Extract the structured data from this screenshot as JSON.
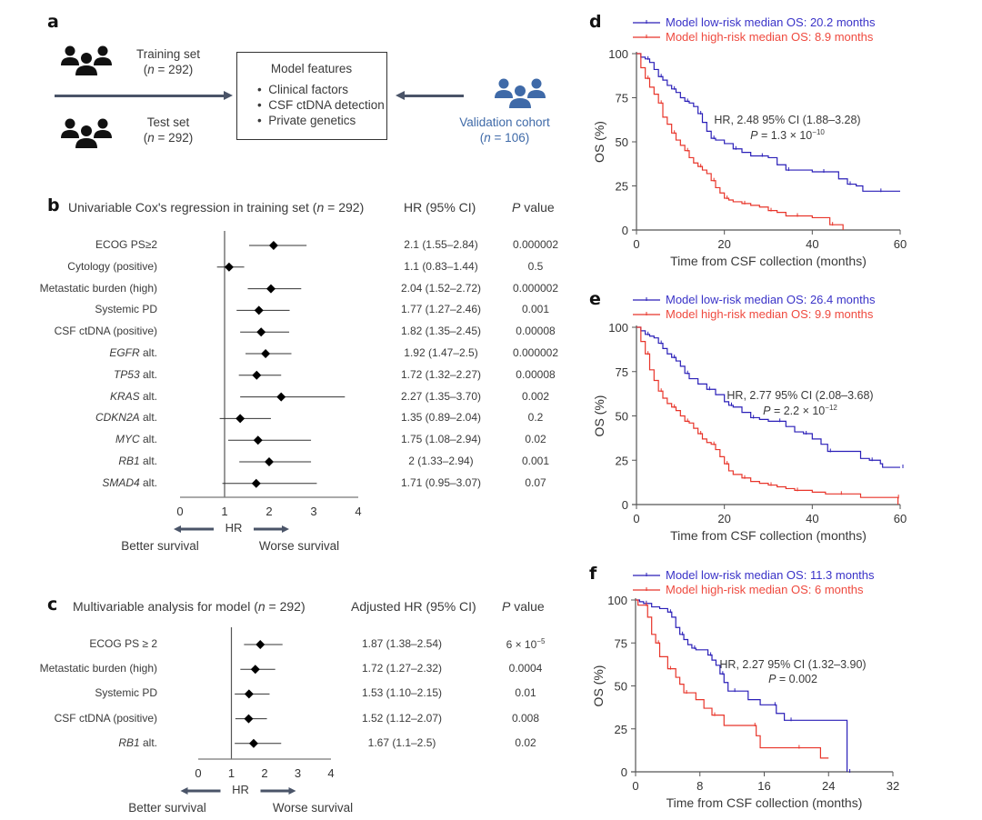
{
  "panel_a": {
    "letter": "a",
    "training": {
      "label": "Training set",
      "n": "(n = 292)"
    },
    "test": {
      "label": "Test set",
      "n": "(n = 292)"
    },
    "validation": {
      "label": "Validation cohort",
      "n": "(n = 106)"
    },
    "model_box": {
      "title": "Model features",
      "items": [
        "Clinical factors",
        "CSF ctDNA detection",
        "Private genetics"
      ]
    },
    "icon": "people-group-icon",
    "colors": {
      "validation": "#3f6aa8",
      "arrow": "#4a5468"
    }
  },
  "chart_data": [
    {
      "panel": "b",
      "type": "forest",
      "title": "Univariable Cox's regression in training set (n = 292)",
      "col_headers": [
        "HR (95% CI)",
        "P value"
      ],
      "xlabel": "HR",
      "xlim": [
        0,
        4
      ],
      "xticks": [
        0,
        1,
        2,
        3,
        4
      ],
      "reference_line": 1,
      "direction_labels": {
        "left": "Better survival",
        "right": "Worse survival"
      },
      "rows": [
        {
          "label": "ECOG PS≥2",
          "italic": "",
          "suffix": "",
          "hr": 2.1,
          "lo": 1.55,
          "hi": 2.84,
          "hr_text": "2.1 (1.55–2.84)",
          "p": "0.000002"
        },
        {
          "label": "Cytology (positive)",
          "italic": "",
          "suffix": "",
          "hr": 1.1,
          "lo": 0.83,
          "hi": 1.44,
          "hr_text": "1.1 (0.83–1.44)",
          "p": "0.5"
        },
        {
          "label": "Metastatic burden (high)",
          "italic": "",
          "suffix": "",
          "hr": 2.04,
          "lo": 1.52,
          "hi": 2.72,
          "hr_text": "2.04 (1.52–2.72)",
          "p": "0.000002"
        },
        {
          "label": "Systemic PD",
          "italic": "",
          "suffix": "",
          "hr": 1.77,
          "lo": 1.27,
          "hi": 2.46,
          "hr_text": "1.77 (1.27–2.46)",
          "p": "0.001"
        },
        {
          "label": "CSF ctDNA (positive)",
          "italic": "",
          "suffix": "",
          "hr": 1.82,
          "lo": 1.35,
          "hi": 2.45,
          "hr_text": "1.82 (1.35–2.45)",
          "p": "0.00008"
        },
        {
          "label": "",
          "italic": "EGFR",
          "suffix": " alt.",
          "hr": 1.92,
          "lo": 1.47,
          "hi": 2.5,
          "hr_text": "1.92 (1.47–2.5)",
          "p": "0.000002"
        },
        {
          "label": "",
          "italic": "TP53",
          "suffix": " alt.",
          "hr": 1.72,
          "lo": 1.32,
          "hi": 2.27,
          "hr_text": "1.72 (1.32–2.27)",
          "p": "0.00008"
        },
        {
          "label": "",
          "italic": "KRAS",
          "suffix": " alt.",
          "hr": 2.27,
          "lo": 1.35,
          "hi": 3.7,
          "hr_text": "2.27 (1.35–3.70)",
          "p": "0.002"
        },
        {
          "label": "",
          "italic": "CDKN2A",
          "suffix": " alt.",
          "hr": 1.35,
          "lo": 0.89,
          "hi": 2.04,
          "hr_text": "1.35 (0.89–2.04)",
          "p": "0.2"
        },
        {
          "label": "",
          "italic": "MYC",
          "suffix": " alt.",
          "hr": 1.75,
          "lo": 1.08,
          "hi": 2.94,
          "hr_text": "1.75 (1.08–2.94)",
          "p": "0.02"
        },
        {
          "label": "",
          "italic": "RB1",
          "suffix": " alt.",
          "hr": 2,
          "lo": 1.33,
          "hi": 2.94,
          "hr_text": "2 (1.33–2.94)",
          "p": "0.001"
        },
        {
          "label": "",
          "italic": "SMAD4",
          "suffix": " alt.",
          "hr": 1.71,
          "lo": 0.95,
          "hi": 3.07,
          "hr_text": "1.71 (0.95–3.07)",
          "p": "0.07"
        }
      ]
    },
    {
      "panel": "c",
      "type": "forest",
      "title": "Multivariable analysis for model (n = 292)",
      "col_headers": [
        "Adjusted HR (95% CI)",
        "P value"
      ],
      "xlabel": "HR",
      "xlim": [
        0,
        4
      ],
      "xticks": [
        0,
        1,
        2,
        3,
        4
      ],
      "reference_line": 1,
      "direction_labels": {
        "left": "Better survival",
        "right": "Worse survival"
      },
      "rows": [
        {
          "label": "ECOG PS ≥ 2",
          "italic": "",
          "suffix": "",
          "hr": 1.87,
          "lo": 1.38,
          "hi": 2.54,
          "hr_text": "1.87 (1.38–2.54)",
          "p": "6 × 10",
          "p_exp": "−5"
        },
        {
          "label": "Metastatic burden (high)",
          "italic": "",
          "suffix": "",
          "hr": 1.72,
          "lo": 1.27,
          "hi": 2.32,
          "hr_text": "1.72 (1.27–2.32)",
          "p": "0.0004",
          "p_exp": ""
        },
        {
          "label": "Systemic PD",
          "italic": "",
          "suffix": "",
          "hr": 1.53,
          "lo": 1.1,
          "hi": 2.15,
          "hr_text": "1.53 (1.10–2.15)",
          "p": "0.01",
          "p_exp": ""
        },
        {
          "label": "CSF ctDNA (positive)",
          "italic": "",
          "suffix": "",
          "hr": 1.52,
          "lo": 1.12,
          "hi": 2.07,
          "hr_text": "1.52 (1.12–2.07)",
          "p": "0.008",
          "p_exp": ""
        },
        {
          "label": "",
          "italic": "RB1",
          "suffix": " alt.",
          "hr": 1.67,
          "lo": 1.1,
          "hi": 2.5,
          "hr_text": "1.67 (1.1–2.5)",
          "p": "0.02",
          "p_exp": ""
        }
      ]
    },
    {
      "panel": "d",
      "type": "line",
      "subtype": "kaplan-meier",
      "xlabel": "Time from CSF collection (months)",
      "ylabel": "OS (%)",
      "xlim": [
        0,
        60
      ],
      "ylim": [
        0,
        100
      ],
      "xticks": [
        0,
        20,
        40,
        60
      ],
      "yticks": [
        0,
        25,
        50,
        75,
        100
      ],
      "annotation": {
        "line1": "HR, 2.48 95% CI (1.88–3.28)",
        "line2_prefix": "P",
        "line2": " = 1.3 × 10",
        "line2_exp": "−10"
      },
      "series": [
        {
          "name": "Model low-risk median OS: 20.2 months",
          "color": "#2a1fb8",
          "x": [
            0,
            1,
            2,
            3,
            4,
            5,
            6,
            7,
            8,
            9,
            10,
            11,
            12,
            13,
            14,
            15,
            16,
            17,
            18,
            20,
            22,
            24,
            26,
            28,
            30,
            32,
            34,
            36,
            40,
            42,
            44,
            46,
            48,
            50,
            51.5,
            55,
            60
          ],
          "y": [
            100,
            98,
            97,
            95,
            91,
            87,
            85,
            82,
            80,
            78,
            75,
            73,
            72,
            70,
            66,
            61,
            56,
            52,
            51,
            49,
            46,
            44,
            42,
            42,
            41,
            37,
            34,
            34,
            33,
            33,
            33,
            29,
            26,
            25,
            22,
            22,
            22
          ]
        },
        {
          "name": "Model high-risk median OS: 8.9 months",
          "color": "#e8352a",
          "x": [
            0,
            1,
            2,
            3,
            4,
            5,
            6,
            7,
            8,
            9,
            10,
            11,
            12,
            13,
            14,
            15,
            16,
            17,
            18,
            19,
            20,
            21,
            22,
            24,
            26,
            28,
            30,
            32,
            34,
            36,
            40,
            43,
            44,
            46,
            47
          ],
          "y": [
            100,
            92,
            86,
            81,
            77,
            72,
            64,
            60,
            55,
            51,
            48,
            45,
            41,
            38,
            36,
            34,
            32,
            28,
            24,
            21,
            18,
            17,
            16,
            15,
            14,
            13,
            11,
            10,
            8,
            8,
            7,
            7,
            3,
            3,
            0
          ]
        }
      ],
      "legend": "top-left"
    },
    {
      "panel": "e",
      "type": "line",
      "subtype": "kaplan-meier",
      "xlabel": "Time from CSF collection (months)",
      "ylabel": "OS (%)",
      "xlim": [
        0,
        60
      ],
      "ylim": [
        0,
        100
      ],
      "xticks": [
        0,
        20,
        40,
        60
      ],
      "yticks": [
        0,
        25,
        50,
        75,
        100
      ],
      "annotation": {
        "line1": "HR, 2.77 95% CI (2.08–3.68)",
        "line2_prefix": "P",
        "line2": " = 2.2 × 10",
        "line2_exp": "−12"
      },
      "series": [
        {
          "name": "Model low-risk median OS: 26.4 months",
          "color": "#2a1fb8",
          "x": [
            0,
            1,
            2,
            3,
            4,
            5,
            6,
            7,
            8,
            9,
            10,
            11,
            12,
            14,
            16,
            18,
            20,
            21,
            22,
            24,
            26,
            28,
            30,
            32,
            34,
            36,
            38,
            40,
            42,
            43.5,
            48,
            51,
            53,
            55.5,
            56,
            60
          ],
          "y": [
            100,
            98,
            96,
            95,
            94,
            91,
            88,
            85,
            83,
            81,
            78,
            74,
            71,
            68,
            65,
            62,
            58,
            56,
            55,
            52,
            49,
            48,
            47,
            47,
            44,
            41,
            40,
            37,
            34,
            30,
            30,
            26,
            25,
            23,
            21,
            21
          ]
        },
        {
          "name": "Model high-risk median OS: 9.9 months",
          "color": "#e8352a",
          "x": [
            0,
            1,
            2,
            3,
            4,
            5,
            6,
            7,
            8,
            9,
            10,
            11,
            12,
            13,
            14,
            15,
            16,
            17,
            18,
            19,
            20,
            21,
            22,
            24,
            26,
            28,
            30,
            32,
            34,
            36,
            40,
            43,
            46,
            51,
            55,
            59,
            59.5
          ],
          "y": [
            100,
            92,
            85,
            76,
            70,
            64,
            60,
            57,
            55,
            53,
            50,
            47,
            46,
            43,
            40,
            37,
            35,
            34,
            31,
            27,
            23,
            19,
            17,
            15,
            13,
            12,
            11,
            10,
            9,
            8,
            7,
            6,
            6,
            4,
            4,
            4,
            0
          ]
        }
      ],
      "legend": "top-left"
    },
    {
      "panel": "f",
      "type": "line",
      "subtype": "kaplan-meier",
      "xlabel": "Time from CSF collection (months)",
      "ylabel": "OS (%)",
      "xlim": [
        0,
        32
      ],
      "ylim": [
        0,
        100
      ],
      "xticks": [
        0,
        8,
        16,
        24,
        32
      ],
      "yticks": [
        0,
        25,
        50,
        75,
        100
      ],
      "annotation": {
        "line1": "HR, 2.27 95% CI (1.32–3.90)",
        "line2_prefix": "P",
        "line2": " = 0.002",
        "line2_exp": ""
      },
      "series": [
        {
          "name": "Model low-risk median OS: 11.3 months",
          "color": "#2a1fb8",
          "x": [
            0,
            0.5,
            1,
            2,
            3,
            4,
            4.5,
            5,
            5.5,
            6,
            6.5,
            7,
            7.5,
            8,
            9,
            9.5,
            10,
            10.5,
            11,
            11.5,
            12,
            14,
            15.5,
            17,
            17.5,
            18.5,
            19,
            24,
            26.3,
            26.3
          ],
          "y": [
            100,
            99,
            98,
            96,
            95,
            93,
            90,
            84,
            80,
            77,
            74,
            72,
            71,
            71,
            68,
            65,
            62,
            57,
            52,
            47,
            47,
            42,
            39,
            39,
            34,
            30,
            30,
            30,
            30,
            0
          ]
        },
        {
          "name": "Model high-risk median OS: 6 months",
          "color": "#e8352a",
          "x": [
            0,
            0.3,
            1,
            1.5,
            2,
            2.5,
            3,
            3.5,
            4,
            5,
            5.5,
            6,
            7.5,
            8.5,
            9.5,
            11,
            12,
            14.5,
            15,
            15.5,
            20,
            23,
            24
          ],
          "y": [
            100,
            97,
            97,
            90,
            80,
            75,
            67,
            67,
            60,
            55,
            51,
            46,
            42,
            37,
            33,
            27,
            27,
            27,
            21,
            14,
            14,
            8,
            8
          ]
        }
      ],
      "legend": "top-left"
    }
  ]
}
